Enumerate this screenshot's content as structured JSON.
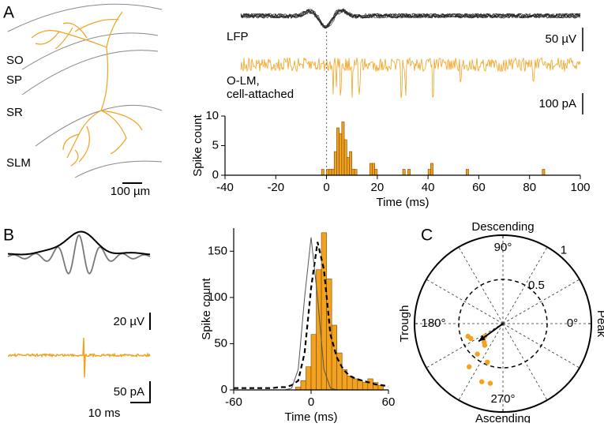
{
  "panel_labels": [
    "A",
    "B",
    "C"
  ],
  "panel_a": {
    "layers": [
      "SO",
      "SP",
      "SR",
      "SLM"
    ],
    "scale_neuron": "100 µm",
    "trace_lfp": "LFP",
    "trace_olm": [
      "O-LM,",
      "cell-attached"
    ],
    "scale_lfp": "50 µV",
    "scale_olm": "100 pA"
  },
  "panel_b": {
    "scale_lfp": "20 µV",
    "scale_olm": "50 pA",
    "scale_time": "10 ms"
  },
  "chart_data": [
    {
      "type": "histogram",
      "color": "#f2a21e",
      "xlabel": "Time (ms)",
      "ylabel": "Spike count",
      "bins": [
        -3,
        -2,
        -1,
        0,
        1,
        2,
        3,
        4,
        5,
        6,
        7,
        8,
        9,
        10,
        11,
        12,
        13,
        14,
        15,
        16,
        17,
        18,
        19,
        20,
        21,
        22,
        23,
        24,
        25,
        26,
        27,
        28,
        29,
        30,
        31,
        32,
        33,
        34,
        35,
        36,
        37,
        38,
        39,
        40,
        41,
        42,
        43,
        44,
        45,
        46,
        47,
        48,
        49,
        50,
        51,
        52,
        53,
        54,
        55,
        56,
        57,
        58,
        59,
        60,
        61,
        62,
        63,
        64,
        65,
        66,
        67,
        68,
        69,
        70,
        71,
        72,
        73,
        74,
        75,
        76,
        77,
        78,
        79,
        80,
        81,
        82,
        83,
        84,
        85,
        86
      ],
      "values": [
        0,
        1,
        0,
        1,
        1,
        1,
        4,
        8,
        7,
        9,
        6,
        3,
        4,
        1,
        1,
        0,
        0,
        0,
        0,
        0,
        2,
        2,
        1,
        0,
        0,
        0,
        0,
        0,
        0,
        0,
        0,
        0,
        0,
        1,
        0,
        1,
        0,
        0,
        0,
        0,
        0,
        0,
        0,
        1,
        2,
        0,
        0,
        0,
        0,
        0,
        0,
        0,
        0,
        0,
        0,
        0,
        0,
        0,
        1,
        0,
        0,
        0,
        0,
        0,
        0,
        0,
        0,
        0,
        0,
        0,
        0,
        0,
        0,
        0,
        0,
        0,
        0,
        0,
        0,
        0,
        0,
        0,
        0,
        0,
        0,
        0,
        0,
        0,
        1
      ],
      "xlim": [
        -40,
        100
      ],
      "xticks": [
        -40,
        -20,
        0,
        20,
        40,
        60,
        80,
        100
      ],
      "ylim": [
        0,
        10
      ],
      "yticks": [
        0,
        5,
        10
      ]
    },
    {
      "type": "histogram",
      "color": "#f2a21e",
      "xlabel": "Time (ms)",
      "ylabel": "Spike count",
      "bins": [
        -12,
        -8,
        -4,
        0,
        4,
        8,
        12,
        16,
        20,
        24,
        28,
        32,
        36,
        40,
        44,
        48,
        52,
        56
      ],
      "values": [
        3,
        10,
        25,
        60,
        130,
        170,
        120,
        70,
        40,
        22,
        15,
        12,
        10,
        8,
        12,
        8,
        5
      ],
      "xlim": [
        -60,
        60
      ],
      "xticks": [
        -60,
        0,
        60
      ],
      "ylim": [
        0,
        175
      ],
      "yticks": [
        0,
        50,
        100,
        150
      ],
      "curves": [
        {
          "color": "#000000",
          "dash": true,
          "x": [
            -60,
            -55,
            -50,
            -45,
            -40,
            -35,
            -30,
            -25,
            -20,
            -15,
            -10,
            -5,
            0,
            5,
            10,
            15,
            20,
            25,
            30,
            35,
            40,
            45,
            50,
            55,
            60
          ],
          "values": [
            2,
            2,
            2,
            2,
            2,
            2,
            2,
            3,
            3,
            5,
            10,
            40,
            110,
            160,
            130,
            60,
            35,
            22,
            15,
            12,
            10,
            8,
            6,
            5,
            4
          ]
        },
        {
          "color": "#555555",
          "dash": false,
          "x": [
            -60,
            -55,
            -50,
            -45,
            -40,
            -35,
            -30,
            -25,
            -20,
            -15,
            -10,
            -5,
            0,
            5,
            10,
            15,
            20,
            25,
            30,
            35,
            40,
            45,
            50,
            55,
            60
          ],
          "values": [
            0,
            0,
            0,
            0,
            0,
            0,
            0,
            0,
            0,
            2,
            22,
            100,
            165,
            100,
            22,
            2,
            0,
            0,
            0,
            0,
            0,
            0,
            0,
            0,
            0
          ]
        }
      ]
    },
    {
      "type": "polar",
      "color": "#f2a21e",
      "angles": [
        205,
        200,
        215,
        225,
        230,
        232,
        248,
        250,
        258,
        230
      ],
      "values": [
        0.4,
        0.42,
        0.25,
        0.3,
        0.45,
        0.62,
        0.47,
        0.7,
        0.69,
        0.32
      ],
      "mean": {
        "angle": 216,
        "value": 0.34
      },
      "rlim": [
        0,
        1
      ],
      "rticks": [
        0.5,
        1
      ],
      "angle_ticks": [
        {
          "value": 0,
          "label": "0°"
        },
        {
          "value": 90,
          "label": "90°"
        },
        {
          "value": 180,
          "label": "180°"
        },
        {
          "value": 270,
          "label": "270°"
        }
      ],
      "annotations": {
        "top": "Descending",
        "bottom": "Ascending",
        "left": "Trough",
        "right": "Peak"
      }
    }
  ]
}
